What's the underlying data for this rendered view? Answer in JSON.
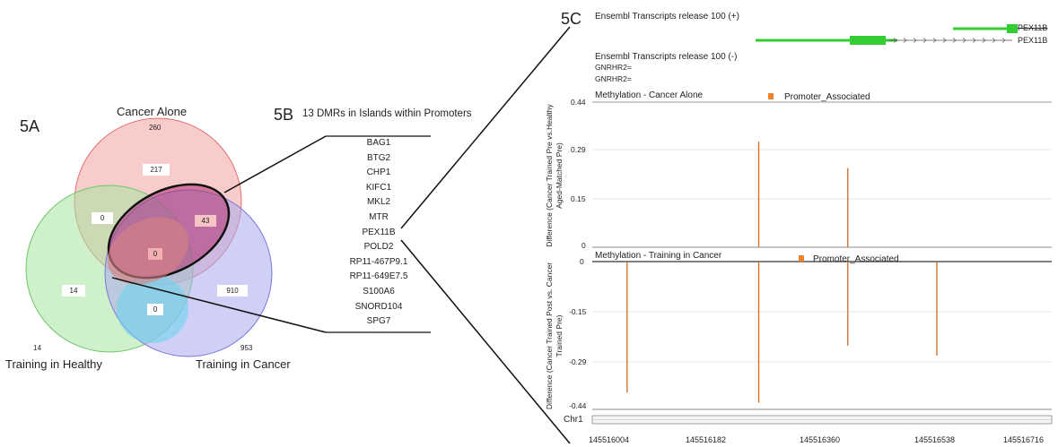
{
  "panel_a": {
    "label": "5A",
    "sets": [
      {
        "name": "Cancer Alone",
        "total": "260",
        "color": "#f4a3a3"
      },
      {
        "name": "Training in Healthy",
        "total": "14",
        "color": "#a6e3a0"
      },
      {
        "name": "Training in Cancer",
        "total": "953",
        "color": "#a9a9ee"
      }
    ],
    "regions": {
      "cancer_only": "217",
      "healthy_only": "14",
      "training_cancer_only": "910",
      "cancer_healthy": "0",
      "cancer_training": "43",
      "healthy_training": "0",
      "all_three": "0"
    }
  },
  "panel_b": {
    "label": "5B",
    "title": "13 DMRs in Islands within Promoters",
    "genes": [
      "BAG1",
      "BTG2",
      "CHP1",
      "KIFC1",
      "MKL2",
      "MTR",
      "PEX11B",
      "POLD2",
      "RP11-467P9.1",
      "RP11-649E7.5",
      "S100A6",
      "SNORD104",
      "SPG7"
    ]
  },
  "panel_c": {
    "label": "5C",
    "track_plus_title": "Ensembl Transcripts release 100 (+)",
    "track_plus_genes": [
      "PEX11B",
      "PEX11B"
    ],
    "track_minus_title": "Ensembl Transcripts release 100 (-)",
    "track_minus_genes": [
      "GNRHR2",
      "GNRHR2"
    ],
    "methylation_tracks": [
      {
        "title": "Methylation - Cancer Alone",
        "legend": "Promoter_Associated",
        "ylabel": "Difference (Cancer Trained Pre vs.Healthy Aged-Matched Pre)",
        "yticks": [
          "0.44",
          "0.29",
          "0.15",
          "0"
        ],
        "ylim": [
          0,
          0.44
        ],
        "bars": [
          {
            "x": 145516262,
            "y": 0.32
          },
          {
            "x": 145516400,
            "y": 0.24
          }
        ]
      },
      {
        "title": "Methylation - Training in Cancer",
        "legend": "Promoter_Associated",
        "ylabel": "Difference (Cancer Trained Post vs. Cancer Trained Pre)",
        "yticks": [
          "0",
          "-0.15",
          "-0.29",
          "-0.44"
        ],
        "ylim": [
          -0.44,
          0
        ],
        "bars": [
          {
            "x": 145516058,
            "y": -0.39
          },
          {
            "x": 145516262,
            "y": -0.42
          },
          {
            "x": 145516400,
            "y": -0.25
          },
          {
            "x": 145516538,
            "y": -0.28
          }
        ]
      }
    ],
    "chromosome": "Chr1",
    "x_ticks": [
      "145516004",
      "145516182",
      "145516360",
      "145516538",
      "145516716"
    ],
    "bar_color": "#d2691e",
    "legend_color": "#f0822a",
    "transcript_color": "#33cc33"
  }
}
